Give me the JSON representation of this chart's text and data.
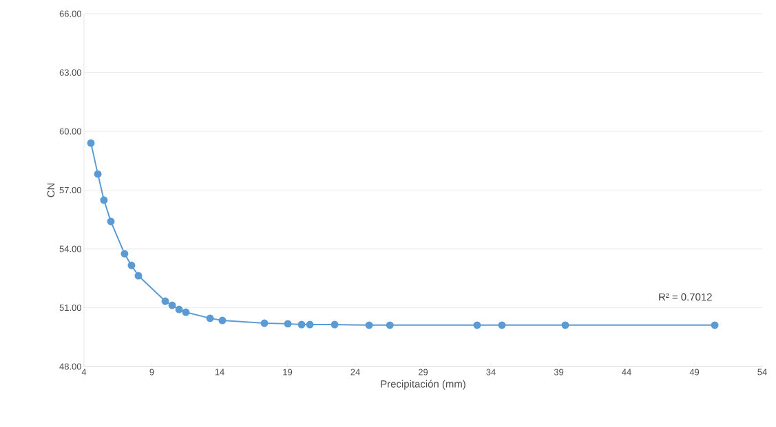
{
  "chart_data": {
    "type": "line",
    "xlabel": "Precipitación (mm)",
    "ylabel": "CN",
    "x": [
      4.51,
      5.02,
      5.47,
      5.98,
      6.99,
      7.5,
      8.01,
      9.99,
      10.5,
      11.01,
      11.51,
      13.29,
      14.2,
      17.3,
      19.03,
      20.04,
      20.65,
      22.48,
      25.02,
      26.55,
      32.98,
      34.81,
      39.48,
      50.5
    ],
    "series": [
      {
        "color": "#5b9bd5",
        "values": [
          59.4,
          57.82,
          56.49,
          55.4,
          53.75,
          53.16,
          52.63,
          51.33,
          51.12,
          50.91,
          50.77,
          50.46,
          50.35,
          50.21,
          50.18,
          50.14,
          50.14,
          50.14,
          50.11,
          50.11,
          50.11,
          50.11,
          50.11,
          50.11
        ]
      }
    ],
    "xlim": [
      4,
      54
    ],
    "xticks": [
      4,
      9,
      14,
      19,
      24,
      29,
      34,
      39,
      44,
      49,
      54
    ],
    "ylim": [
      48,
      66
    ],
    "yticks": [
      {
        "value": 48,
        "label": "48.00"
      },
      {
        "value": 51,
        "label": "51.00"
      },
      {
        "value": 54,
        "label": "54.00"
      },
      {
        "value": 57,
        "label": "57.00"
      },
      {
        "value": 60,
        "label": "60.00"
      },
      {
        "value": 63,
        "label": "63.00"
      },
      {
        "value": 66,
        "label": "66.00"
      }
    ],
    "annotations": [
      "R² = 0.7012"
    ],
    "grid": "y",
    "marker": "circle",
    "line_style": "solid"
  }
}
